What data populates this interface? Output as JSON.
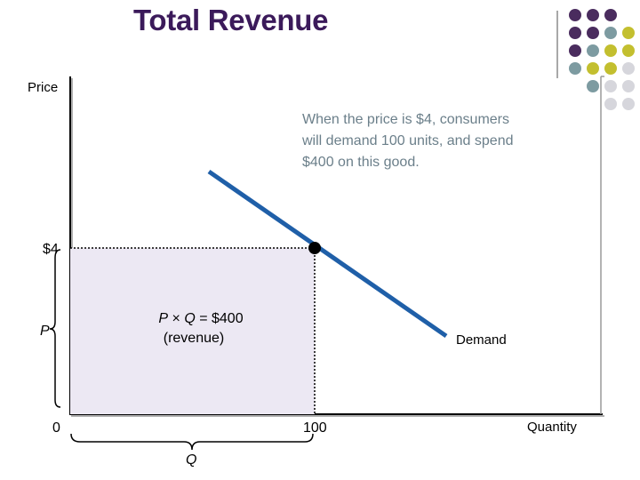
{
  "title": "Total Revenue",
  "colors": {
    "title": "#3b1a5a",
    "demand_line": "#1f5fa8",
    "revenue_fill": "#ece8f3",
    "annotation_text": "#6b7f8a",
    "dot_purple": "#4a2c5e",
    "dot_teal": "#7d9ba1",
    "dot_olive": "#c3bf2f",
    "dot_lightgray": "#d6d6dc",
    "point_marker": "#000000"
  },
  "dot_grid": {
    "rows": [
      [
        "dot_purple",
        "dot_purple",
        "dot_purple",
        null
      ],
      [
        "dot_purple",
        "dot_purple",
        "dot_teal",
        "dot_olive"
      ],
      [
        "dot_purple",
        "dot_teal",
        "dot_olive",
        "dot_olive"
      ],
      [
        "dot_teal",
        "dot_olive",
        "dot_olive",
        "dot_lightgray"
      ],
      [
        null,
        "dot_teal",
        "dot_lightgray",
        "dot_lightgray"
      ],
      [
        null,
        null,
        "dot_lightgray",
        "dot_lightgray"
      ]
    ]
  },
  "diagram": {
    "y_axis_label": "Price",
    "x_axis_label": "Quantity",
    "price_tick_label": "$4",
    "quantity_tick_label": "100",
    "origin_label": "0",
    "p_bracket_label": "P",
    "q_bracket_label": "Q",
    "revenue_label_line1": "P × Q = $400",
    "revenue_label_line2": "(revenue)",
    "demand_label": "Demand",
    "annotation_lines": [
      "When the price is $4, consumers",
      "will demand 100 units, and spend",
      "$400 on this good."
    ],
    "price_value": 4,
    "quantity_value": 100,
    "revenue_value": 400
  }
}
